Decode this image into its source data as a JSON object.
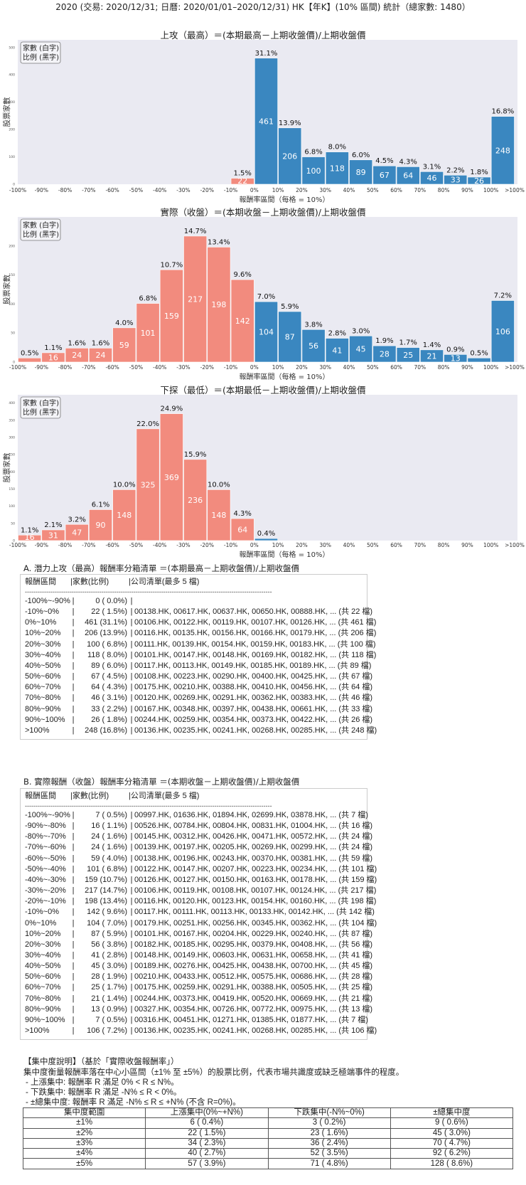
{
  "header": {
    "title": "2020 (交易: 2020/12/31; 日曆: 2020/01/01–2020/12/31) HK【年K】(10% 區間) 統計（總家數: 1480）"
  },
  "colors": {
    "negative": "#f28b7e",
    "positive": "#3a87c0",
    "plot_bg": "#eaeaf2"
  },
  "chart_data": [
    {
      "type": "bar",
      "title": "上攻（最高）＝(本期最高－上期收盤價)/上期收盤價",
      "xlabel": "報酬率區間（每格 = 10%）",
      "ylabel": "股票家數",
      "legend": [
        "家數 (白字)",
        "比例 (黑字)"
      ],
      "legend_position": "top-left",
      "x_ticks": [
        "-100%",
        "-90%",
        "-80%",
        "-70%",
        "-60%",
        "-50%",
        "-40%",
        "-30%",
        "-20%",
        "-10%",
        "0%",
        "10%",
        "20%",
        "30%",
        "40%",
        "50%",
        "60%",
        "70%",
        "80%",
        "90%",
        "100%",
        ">100%"
      ],
      "values": [
        0,
        0,
        0,
        0,
        0,
        0,
        0,
        0,
        0,
        22,
        461,
        206,
        100,
        118,
        89,
        67,
        64,
        46,
        33,
        26,
        248
      ],
      "percent_labels": [
        "",
        "",
        "",
        "",
        "",
        "",
        "",
        "",
        "",
        "1.5%",
        "31.1%",
        "13.9%",
        "6.8%",
        "8.0%",
        "6.0%",
        "4.5%",
        "4.3%",
        "3.1%",
        "2.2%",
        "1.8%",
        "16.8%"
      ],
      "y_ticks": [
        0,
        100,
        200,
        300,
        400,
        500
      ],
      "ylim": [
        0,
        528
      ]
    },
    {
      "type": "bar",
      "title": "實際（收盤）＝(本期收盤－上期收盤價)/上期收盤價",
      "xlabel": "報酬率區間（每格 = 10%）",
      "ylabel": "股票家數",
      "legend": [
        "家數 (白字)",
        "比例 (黑字)"
      ],
      "legend_position": "top-left",
      "x_ticks": [
        "-100%",
        "-90%",
        "-80%",
        "-70%",
        "-60%",
        "-50%",
        "-40%",
        "-30%",
        "-20%",
        "-10%",
        "0%",
        "10%",
        "20%",
        "30%",
        "40%",
        "50%",
        "60%",
        "70%",
        "80%",
        "90%",
        "100%",
        ">100%"
      ],
      "values": [
        7,
        16,
        24,
        24,
        59,
        101,
        159,
        217,
        198,
        142,
        104,
        87,
        56,
        41,
        45,
        28,
        25,
        21,
        13,
        7,
        106
      ],
      "percent_labels": [
        "0.5%",
        "1.1%",
        "1.6%",
        "1.6%",
        "4.0%",
        "6.8%",
        "10.7%",
        "14.7%",
        "13.4%",
        "9.6%",
        "7.0%",
        "5.9%",
        "3.8%",
        "2.8%",
        "3.0%",
        "1.9%",
        "1.7%",
        "1.4%",
        "0.9%",
        "0.5%",
        "7.2%"
      ],
      "y_ticks": [
        0,
        50,
        100,
        150,
        200
      ],
      "ylim": [
        0,
        250
      ]
    },
    {
      "type": "bar",
      "title": "下探（最低）＝(本期最低－上期收盤價)/上期收盤價",
      "xlabel": "報酬率區間（每格 = 10%）",
      "ylabel": "股票家數",
      "legend": [
        "家數 (白字)",
        "比例 (黑字)"
      ],
      "legend_position": "top-left",
      "x_ticks": [
        "-100%",
        "-90%",
        "-80%",
        "-70%",
        "-60%",
        "-50%",
        "-40%",
        "-30%",
        "-20%",
        "-10%",
        "0%",
        "10%",
        "20%",
        "30%",
        "40%",
        "50%",
        "60%",
        "70%",
        "80%",
        "90%",
        "100%",
        ">100%"
      ],
      "values": [
        16,
        31,
        47,
        90,
        148,
        325,
        369,
        236,
        148,
        64,
        6,
        0,
        0,
        0,
        0,
        0,
        0,
        0,
        0,
        0,
        0
      ],
      "percent_labels": [
        "1.1%",
        "2.1%",
        "3.2%",
        "6.1%",
        "10.0%",
        "22.0%",
        "24.9%",
        "15.9%",
        "10.0%",
        "4.3%",
        "0.4%",
        "",
        "",
        "",
        "",
        "",
        "",
        "",
        "",
        "",
        ""
      ],
      "y_ticks": [
        0,
        50,
        100,
        150,
        200,
        250,
        300,
        350,
        400
      ],
      "ylim": [
        0,
        424
      ]
    }
  ],
  "sections": {
    "A": {
      "title": "A. 潛力上攻（最高）報酬率分箱清單 ＝(本期最高－上期收盤價)/上期收盤價",
      "header": [
        "報酬區間",
        "|家數(比例)",
        "|公司清單(最多 5 檔)"
      ],
      "divider": "--------------------------------------------------------------------------------------------------------------------",
      "rows": [
        {
          "range": "-100%~-90%",
          "count": "0 ( 0.0%)",
          "companies": ""
        },
        {
          "range": "-10%~0%",
          "count": "22 ( 1.5%)",
          "companies": "00138.HK, 00617.HK, 00637.HK, 00650.HK, 00888.HK, ... (共 22 檔)"
        },
        {
          "range": "0%~10%",
          "count": "461 (31.1%)",
          "companies": "00106.HK, 00122.HK, 00119.HK, 00107.HK, 00126.HK, ... (共 461 檔)"
        },
        {
          "range": "10%~20%",
          "count": "206 (13.9%)",
          "companies": "00116.HK, 00135.HK, 00156.HK, 00166.HK, 00179.HK, ... (共 206 檔)"
        },
        {
          "range": "20%~30%",
          "count": "100 ( 6.8%)",
          "companies": "00111.HK, 00139.HK, 00154.HK, 00159.HK, 00183.HK, ... (共 100 檔)"
        },
        {
          "range": "30%~40%",
          "count": "118 ( 8.0%)",
          "companies": "00101.HK, 00147.HK, 00148.HK, 00169.HK, 00182.HK, ... (共 118 檔)"
        },
        {
          "range": "40%~50%",
          "count": "89 ( 6.0%)",
          "companies": "00117.HK, 00113.HK, 00149.HK, 00185.HK, 00189.HK, ... (共 89 檔)"
        },
        {
          "range": "50%~60%",
          "count": "67 ( 4.5%)",
          "companies": "00108.HK, 00223.HK, 00290.HK, 00400.HK, 00425.HK, ... (共 67 檔)"
        },
        {
          "range": "60%~70%",
          "count": "64 ( 4.3%)",
          "companies": "00175.HK, 00210.HK, 00388.HK, 00410.HK, 00456.HK, ... (共 64 檔)"
        },
        {
          "range": "70%~80%",
          "count": "46 ( 3.1%)",
          "companies": "00120.HK, 00269.HK, 00291.HK, 00362.HK, 00383.HK, ... (共 46 檔)"
        },
        {
          "range": "80%~90%",
          "count": "33 ( 2.2%)",
          "companies": "00167.HK, 00348.HK, 00397.HK, 00438.HK, 00661.HK, ... (共 33 檔)"
        },
        {
          "range": "90%~100%",
          "count": "26 ( 1.8%)",
          "companies": "00244.HK, 00259.HK, 00354.HK, 00373.HK, 00422.HK, ... (共 26 檔)"
        },
        {
          "range": ">100%",
          "count": "248 (16.8%)",
          "companies": "00136.HK, 00235.HK, 00241.HK, 00268.HK, 00285.HK, ... (共 248 檔)"
        }
      ]
    },
    "B": {
      "title": "B. 實際報酬（收盤）報酬率分箱清單 ＝(本期收盤－上期收盤價)/上期收盤價",
      "header": [
        "報酬區間",
        "|家數(比例)",
        "|公司清單(最多 5 檔)"
      ],
      "divider": "--------------------------------------------------------------------------------------------------------------------",
      "rows": [
        {
          "range": "-100%~-90%",
          "count": "7 ( 0.5%)",
          "companies": "00997.HK, 01636.HK, 01894.HK, 02699.HK, 03878.HK, ... (共 7 檔)"
        },
        {
          "range": "-90%~-80%",
          "count": "16 ( 1.1%)",
          "companies": "00526.HK, 00784.HK, 00804.HK, 00831.HK, 01004.HK, ... (共 16 檔)"
        },
        {
          "range": "-80%~-70%",
          "count": "24 ( 1.6%)",
          "companies": "00145.HK, 00312.HK, 00426.HK, 00471.HK, 00572.HK, ... (共 24 檔)"
        },
        {
          "range": "-70%~-60%",
          "count": "24 ( 1.6%)",
          "companies": "00139.HK, 00197.HK, 00205.HK, 00269.HK, 00299.HK, ... (共 24 檔)"
        },
        {
          "range": "-60%~-50%",
          "count": "59 ( 4.0%)",
          "companies": "00138.HK, 00196.HK, 00243.HK, 00370.HK, 00381.HK, ... (共 59 檔)"
        },
        {
          "range": "-50%~-40%",
          "count": "101 ( 6.8%)",
          "companies": "00122.HK, 00147.HK, 00207.HK, 00223.HK, 00234.HK, ... (共 101 檔)"
        },
        {
          "range": "-40%~-30%",
          "count": "159 (10.7%)",
          "companies": "00126.HK, 00127.HK, 00150.HK, 00163.HK, 00178.HK, ... (共 159 檔)"
        },
        {
          "range": "-30%~-20%",
          "count": "217 (14.7%)",
          "companies": "00106.HK, 00119.HK, 00108.HK, 00107.HK, 00124.HK, ... (共 217 檔)"
        },
        {
          "range": "-20%~-10%",
          "count": "198 (13.4%)",
          "companies": "00116.HK, 00120.HK, 00123.HK, 00154.HK, 00160.HK, ... (共 198 檔)"
        },
        {
          "range": "-10%~0%",
          "count": "142 ( 9.6%)",
          "companies": "00117.HK, 00111.HK, 00113.HK, 00133.HK, 00142.HK, ... (共 142 檔)"
        },
        {
          "range": "0%~10%",
          "count": "104 ( 7.0%)",
          "companies": "00179.HK, 00251.HK, 00256.HK, 00345.HK, 00362.HK, ... (共 104 檔)"
        },
        {
          "range": "10%~20%",
          "count": "87 ( 5.9%)",
          "companies": "00101.HK, 00167.HK, 00204.HK, 00229.HK, 00240.HK, ... (共 87 檔)"
        },
        {
          "range": "20%~30%",
          "count": "56 ( 3.8%)",
          "companies": "00182.HK, 00185.HK, 00295.HK, 00379.HK, 00408.HK, ... (共 56 檔)"
        },
        {
          "range": "30%~40%",
          "count": "41 ( 2.8%)",
          "companies": "00148.HK, 00149.HK, 00603.HK, 00631.HK, 00658.HK, ... (共 41 檔)"
        },
        {
          "range": "40%~50%",
          "count": "45 ( 3.0%)",
          "companies": "00189.HK, 00276.HK, 00425.HK, 00438.HK, 00700.HK, ... (共 45 檔)"
        },
        {
          "range": "50%~60%",
          "count": "28 ( 1.9%)",
          "companies": "00210.HK, 00433.HK, 00512.HK, 00575.HK, 00686.HK, ... (共 28 檔)"
        },
        {
          "range": "60%~70%",
          "count": "25 ( 1.7%)",
          "companies": "00175.HK, 00259.HK, 00291.HK, 00388.HK, 00505.HK, ... (共 25 檔)"
        },
        {
          "range": "70%~80%",
          "count": "21 ( 1.4%)",
          "companies": "00244.HK, 00373.HK, 00419.HK, 00520.HK, 00669.HK, ... (共 21 檔)"
        },
        {
          "range": "80%~90%",
          "count": "13 ( 0.9%)",
          "companies": "00327.HK, 00354.HK, 00726.HK, 00772.HK, 00975.HK, ... (共 13 檔)"
        },
        {
          "range": "90%~100%",
          "count": "7 ( 0.5%)",
          "companies": "00316.HK, 00451.HK, 01271.HK, 01385.HK, 01877.HK, ... (共 7 檔)"
        },
        {
          "range": ">100%",
          "count": "106 ( 7.2%)",
          "companies": "00136.HK, 00235.HK, 00241.HK, 00268.HK, 00285.HK, ... (共 106 檔)"
        }
      ]
    }
  },
  "concentration": {
    "heading": "【集中度說明】（基於「實際收盤報酬率」）",
    "description": "集中度衡量報酬率落在中心小區間（±1% 至 ±5%）的股票比例，代表市場共識度或缺乏極端事件的程度。",
    "bullets": [
      "- 上漲集中: 報酬率 R 滿足 0% < R ≤ N%。",
      "- 下跌集中: 報酬率 R 滿足 -N% ≤ R < 0%。",
      "- ±總集中度: 報酬率 R 滿足 -N% ≤ R ≤ +N% (不含 R=0%)。"
    ],
    "columns": [
      "集中度範圍",
      "上漲集中(0%~+N%)",
      "下跌集中(-N%~0%)",
      "±總集中度"
    ],
    "rows": [
      [
        "±1%",
        "6 ( 0.4%)",
        "3 ( 0.2%)",
        "9 ( 0.6%)"
      ],
      [
        "±2%",
        "22 ( 1.5%)",
        "23 ( 1.6%)",
        "45 ( 3.0%)"
      ],
      [
        "±3%",
        "34 ( 2.3%)",
        "36 ( 2.4%)",
        "70 ( 4.7%)"
      ],
      [
        "±4%",
        "40 ( 2.7%)",
        "52 ( 3.5%)",
        "92 ( 6.2%)"
      ],
      [
        "±5%",
        "57 ( 3.9%)",
        "71 ( 4.8%)",
        "128 ( 8.6%)"
      ]
    ]
  }
}
